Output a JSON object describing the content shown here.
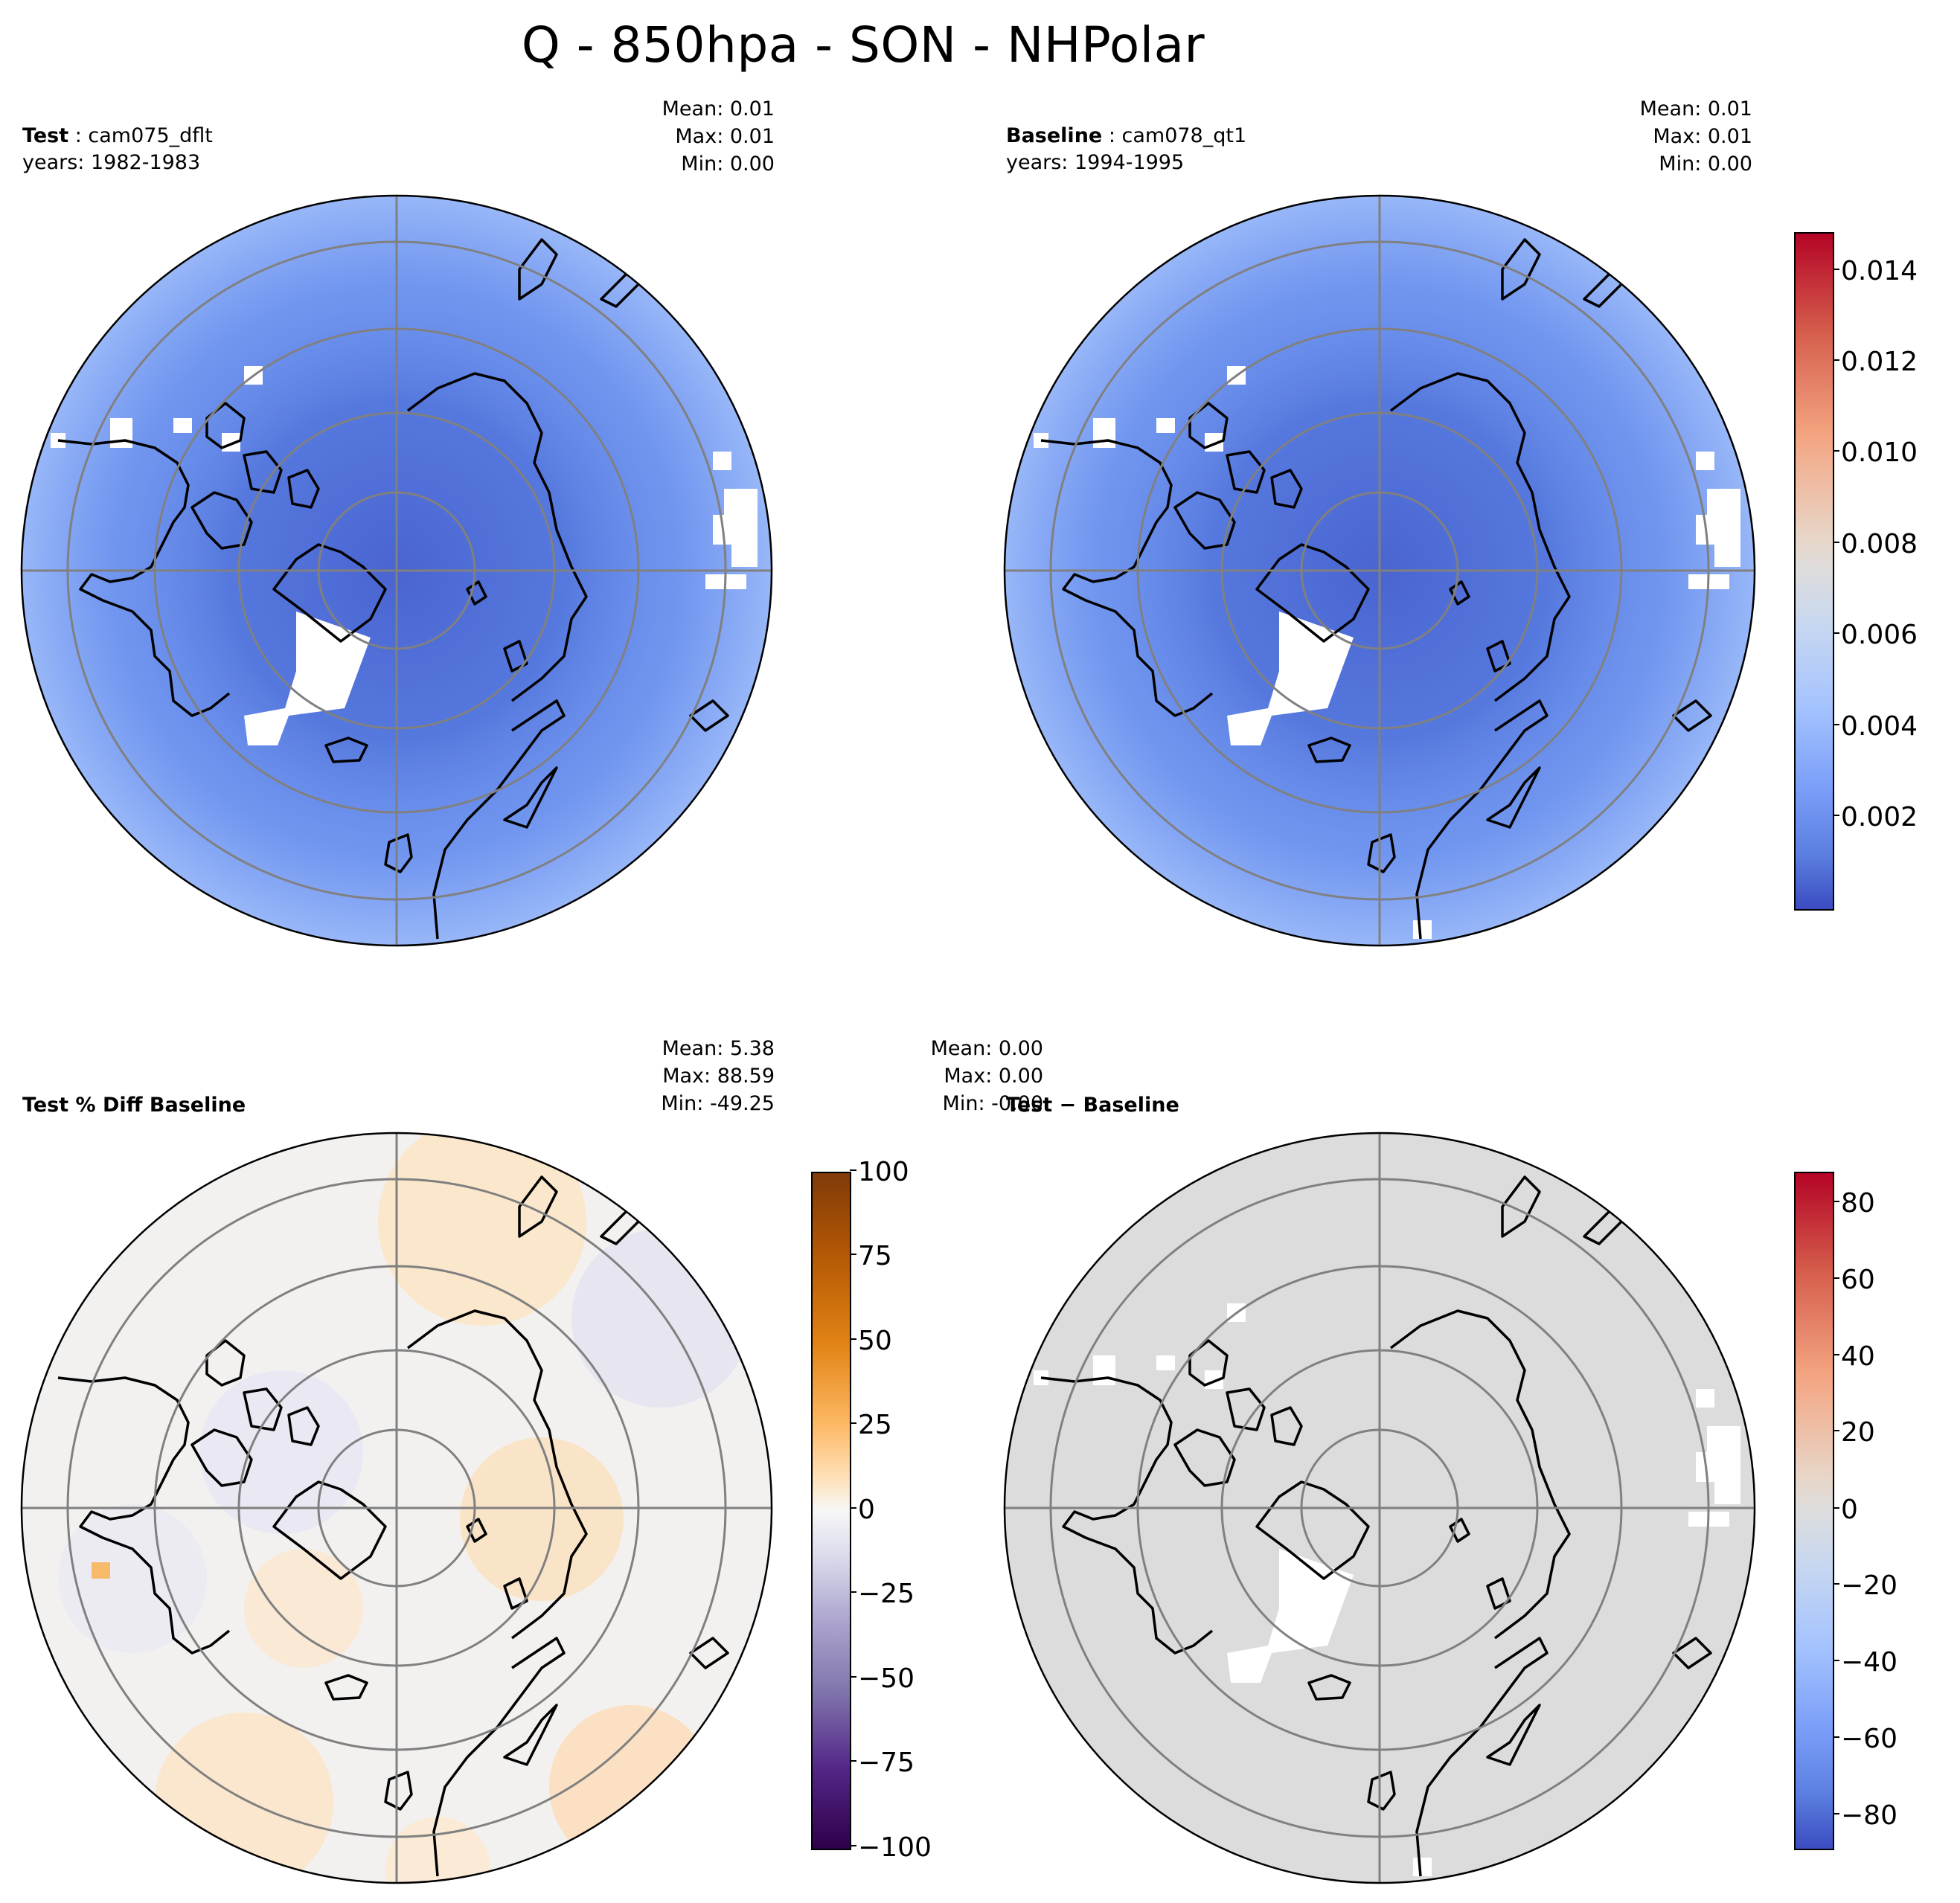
{
  "title": "Q - 850hpa - SON - NHPolar",
  "panels": [
    {
      "id": "test",
      "label": "Test",
      "case": "cam075_dflt",
      "years": "years: 1982-1983",
      "stats": {
        "mean": "Mean:  0.01",
        "max": "Max:  0.01",
        "min": "Min:  0.00"
      },
      "fill": "#5b85e6"
    },
    {
      "id": "baseline",
      "label": "Baseline",
      "case": "cam078_qt1",
      "years": "years: 1994-1995",
      "stats": {
        "mean": "Mean:  0.01",
        "max": "Max:  0.01",
        "min": "Min:  0.00"
      },
      "fill": "#5b85e6"
    },
    {
      "id": "pctdiff",
      "label": "Test % Diff Baseline",
      "stats": {
        "mean": "Mean:  5.38",
        "max": "Max: 88.59",
        "min": "Min: -49.25"
      },
      "fill": "#f3f1f0"
    },
    {
      "id": "diff",
      "label": "Test − Baseline",
      "stats": {
        "mean": "Mean:  0.00",
        "max": "Max:  0.00",
        "min": "Min: -0.00"
      },
      "fill": "#dcdcdc"
    }
  ],
  "colorbars": [
    {
      "id": "cbar-field",
      "colormap": "coolwarm",
      "ticks": [
        "0.014",
        "0.012",
        "0.010",
        "0.008",
        "0.006",
        "0.004",
        "0.002"
      ]
    },
    {
      "id": "cbar-pct",
      "colormap": "PuOr",
      "ticks": [
        "100",
        "75",
        "50",
        "25",
        "0",
        "−25",
        "−50",
        "−75",
        "−100"
      ]
    },
    {
      "id": "cbar-diff",
      "colormap": "coolwarm",
      "ticks": [
        "80",
        "60",
        "40",
        "20",
        "0",
        "−20",
        "−40",
        "−60",
        "−80"
      ]
    }
  ],
  "colors": {
    "coast": "#000000",
    "grid": "#808080",
    "missing": "#ffffff"
  }
}
